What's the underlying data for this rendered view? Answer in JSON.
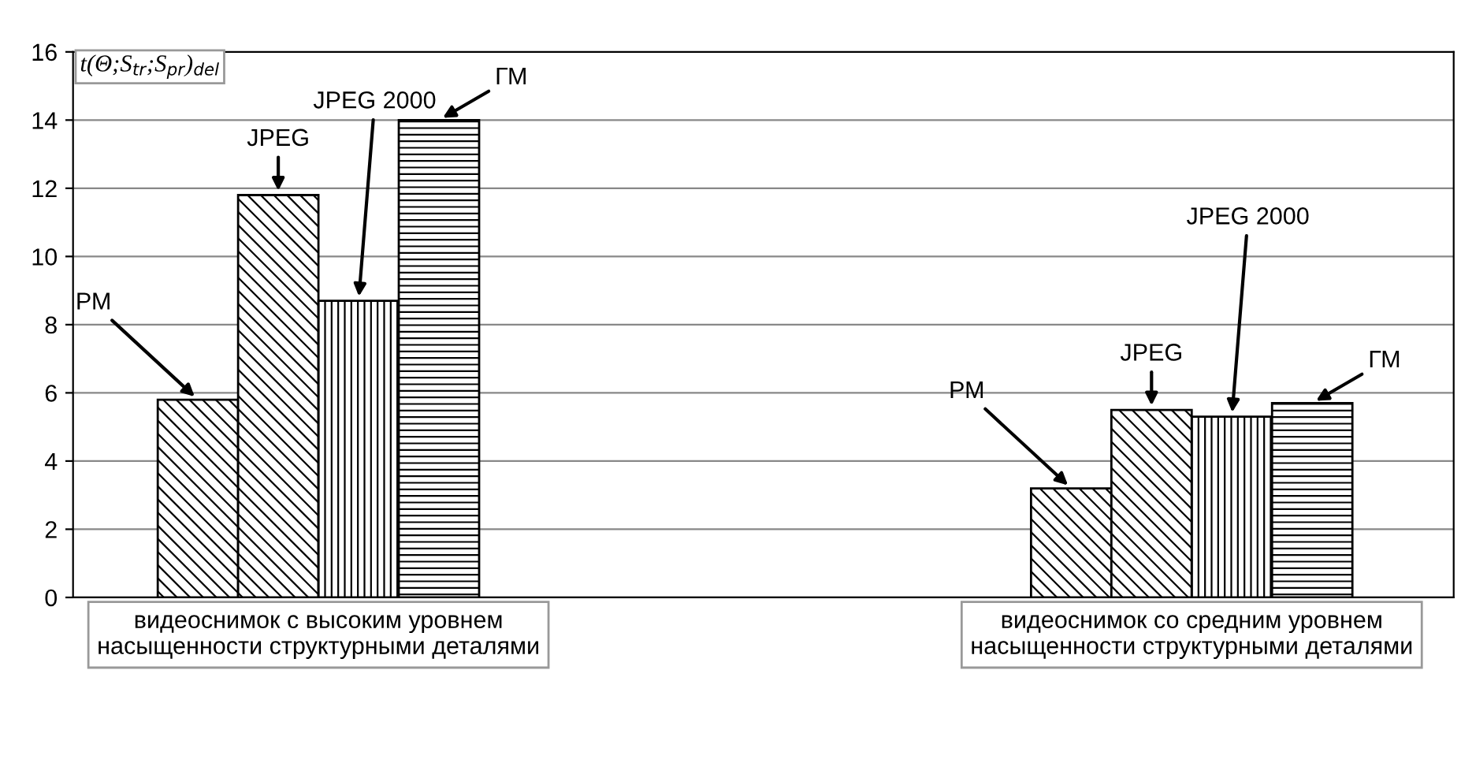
{
  "chart_data": {
    "type": "bar",
    "ylabel": "t(Θ;S$_{tr}$;S$_{pr}$)$_{del}$",
    "categories": [
      "видеоснимок с высоким уровнем\nнасыщенности структурными деталями",
      "видеоснимок со средним уровнем\nнасыщенности структурными деталями"
    ],
    "series": [
      {
        "name": "РМ",
        "color": "#000000",
        "values": [
          5.8,
          3.2
        ]
      },
      {
        "name": "JPEG",
        "color": "#000000",
        "values": [
          11.8,
          5.5
        ]
      },
      {
        "name": "JPEG 2000",
        "color": "#000000",
        "values": [
          8.7,
          5.3
        ]
      },
      {
        "name": "ГМ",
        "color": "#000000",
        "values": [
          14.0,
          5.7
        ]
      }
    ],
    "ylim": [
      0,
      16
    ],
    "yticks": [
      0,
      2,
      4,
      6,
      8,
      10,
      12,
      14,
      16
    ],
    "grid": "y",
    "legend": false
  }
}
